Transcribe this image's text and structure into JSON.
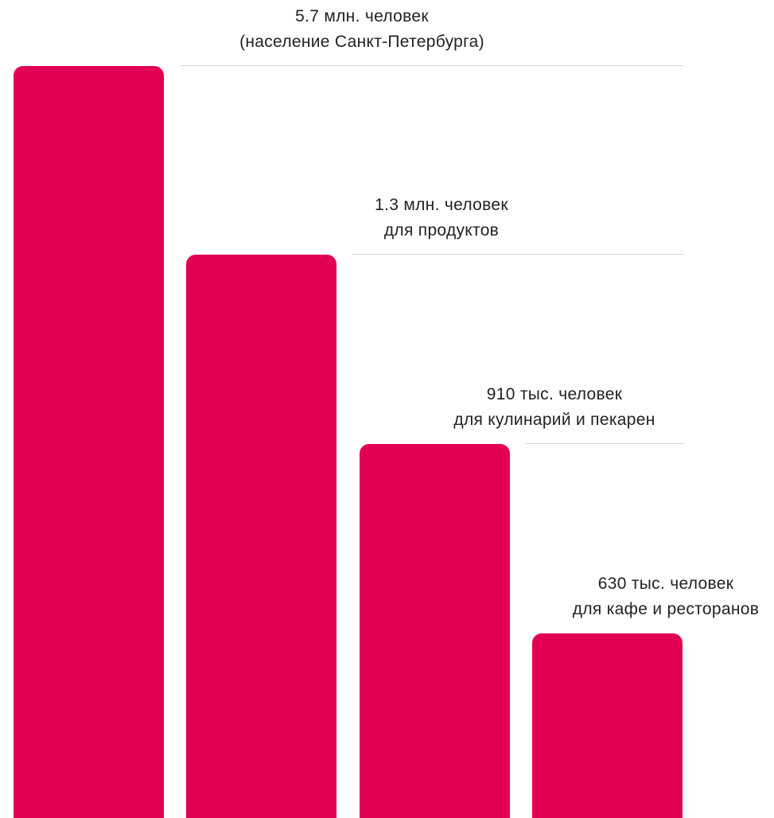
{
  "chart_data": {
    "type": "bar",
    "categories": [
      "(население Санкт-Петербурга)",
      "для продуктов",
      "для кулинарий и пекарен",
      "для кафе и ресторанов"
    ],
    "values": [
      5.7,
      1.3,
      0.91,
      0.63
    ],
    "value_labels": [
      "5.7 млн. человек",
      "1.3 млн. человек",
      "910 тыс. человек",
      "630 тыс. человек"
    ],
    "unit": "млн. человек",
    "ylim": [
      0,
      5.7
    ],
    "grid": false,
    "legend": "none",
    "colors": {
      "bar": "#e20055"
    }
  }
}
